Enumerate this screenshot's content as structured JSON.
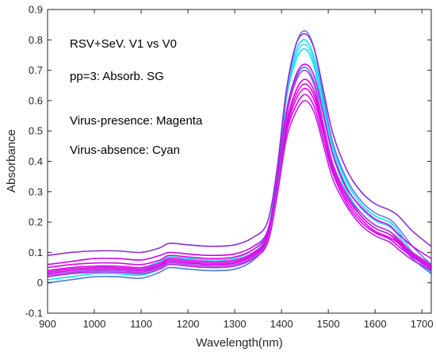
{
  "chart_data": {
    "type": "line",
    "title": "",
    "xlabel": "Wavelength(nm)",
    "ylabel": "Absorbance",
    "xlim": [
      900,
      1720
    ],
    "ylim": [
      -0.1,
      0.9
    ],
    "xticks": [
      900,
      1000,
      1100,
      1200,
      1300,
      1400,
      1500,
      1600,
      1700
    ],
    "yticks": [
      -0.1,
      0,
      0.1,
      0.2,
      0.3,
      0.4,
      0.5,
      0.6,
      0.7,
      0.8,
      0.9
    ],
    "ytick_labels": [
      "-0.1",
      "0",
      "0.1",
      "0.2",
      "0.3",
      "0.4",
      "0.5",
      "0.6",
      "0.7",
      "0.8",
      "0.9"
    ],
    "grid": false,
    "annotations": [
      "RSV+SeV. V1 vs V0",
      "pp=3: Absorb. SG",
      "Virus-presence: Magenta",
      "Virus-absence:  Cyan"
    ],
    "x": [
      900,
      950,
      1000,
      1050,
      1100,
      1140,
      1160,
      1200,
      1250,
      1300,
      1340,
      1370,
      1390,
      1410,
      1430,
      1450,
      1470,
      1490,
      1510,
      1540,
      1570,
      1600,
      1630,
      1650,
      1680,
      1720
    ],
    "series": [
      {
        "color": "#00E5EE",
        "values": [
          0.04,
          0.05,
          0.055,
          0.055,
          0.05,
          0.07,
          0.085,
          0.08,
          0.075,
          0.08,
          0.11,
          0.17,
          0.35,
          0.62,
          0.76,
          0.8,
          0.74,
          0.59,
          0.45,
          0.33,
          0.26,
          0.22,
          0.2,
          0.17,
          0.1,
          0.04
        ]
      },
      {
        "color": "#00E5EE",
        "values": [
          0.01,
          0.02,
          0.03,
          0.03,
          0.025,
          0.045,
          0.06,
          0.055,
          0.05,
          0.055,
          0.085,
          0.15,
          0.33,
          0.6,
          0.73,
          0.77,
          0.71,
          0.56,
          0.42,
          0.3,
          0.23,
          0.19,
          0.17,
          0.14,
          0.08,
          0.03
        ]
      },
      {
        "color": "#3DD6F5",
        "values": [
          0.03,
          0.04,
          0.045,
          0.045,
          0.04,
          0.06,
          0.075,
          0.07,
          0.065,
          0.07,
          0.1,
          0.16,
          0.34,
          0.61,
          0.745,
          0.785,
          0.725,
          0.575,
          0.435,
          0.315,
          0.245,
          0.205,
          0.185,
          0.155,
          0.09,
          0.035
        ]
      },
      {
        "color": "#6A7BE8",
        "values": [
          0.02,
          0.03,
          0.04,
          0.04,
          0.035,
          0.055,
          0.07,
          0.065,
          0.06,
          0.065,
          0.095,
          0.16,
          0.34,
          0.62,
          0.78,
          0.83,
          0.77,
          0.61,
          0.46,
          0.34,
          0.27,
          0.23,
          0.21,
          0.18,
          0.12,
          0.06
        ]
      },
      {
        "color": "#4B7BE0",
        "values": [
          0.0,
          0.01,
          0.02,
          0.02,
          0.015,
          0.035,
          0.05,
          0.045,
          0.04,
          0.045,
          0.075,
          0.14,
          0.31,
          0.55,
          0.67,
          0.71,
          0.66,
          0.52,
          0.39,
          0.29,
          0.22,
          0.18,
          0.16,
          0.13,
          0.08,
          0.03
        ]
      },
      {
        "color": "#8E2DD6",
        "values": [
          0.09,
          0.1,
          0.105,
          0.105,
          0.1,
          0.115,
          0.13,
          0.125,
          0.12,
          0.125,
          0.15,
          0.2,
          0.37,
          0.63,
          0.78,
          0.82,
          0.77,
          0.63,
          0.49,
          0.37,
          0.3,
          0.26,
          0.24,
          0.22,
          0.17,
          0.12
        ]
      },
      {
        "color": "#D000F0",
        "values": [
          0.06,
          0.07,
          0.08,
          0.08,
          0.075,
          0.09,
          0.1,
          0.095,
          0.09,
          0.095,
          0.12,
          0.17,
          0.33,
          0.56,
          0.68,
          0.72,
          0.68,
          0.55,
          0.42,
          0.31,
          0.25,
          0.21,
          0.19,
          0.16,
          0.12,
          0.08
        ]
      },
      {
        "color": "#E600E6",
        "values": [
          0.05,
          0.06,
          0.065,
          0.065,
          0.06,
          0.075,
          0.09,
          0.085,
          0.08,
          0.085,
          0.11,
          0.16,
          0.31,
          0.52,
          0.63,
          0.67,
          0.63,
          0.51,
          0.39,
          0.29,
          0.23,
          0.19,
          0.17,
          0.14,
          0.1,
          0.06
        ]
      },
      {
        "color": "#F000F0",
        "values": [
          0.04,
          0.05,
          0.055,
          0.055,
          0.05,
          0.065,
          0.08,
          0.075,
          0.07,
          0.075,
          0.1,
          0.15,
          0.3,
          0.5,
          0.6,
          0.64,
          0.6,
          0.49,
          0.37,
          0.27,
          0.21,
          0.17,
          0.15,
          0.13,
          0.09,
          0.05
        ]
      },
      {
        "color": "#E000F5",
        "values": [
          0.03,
          0.04,
          0.045,
          0.045,
          0.04,
          0.055,
          0.07,
          0.065,
          0.06,
          0.065,
          0.09,
          0.14,
          0.29,
          0.49,
          0.58,
          0.62,
          0.58,
          0.47,
          0.36,
          0.26,
          0.2,
          0.165,
          0.145,
          0.12,
          0.085,
          0.045
        ]
      },
      {
        "color": "#C020E8",
        "values": [
          0.02,
          0.03,
          0.035,
          0.035,
          0.03,
          0.045,
          0.06,
          0.055,
          0.05,
          0.055,
          0.08,
          0.13,
          0.28,
          0.47,
          0.56,
          0.6,
          0.56,
          0.45,
          0.34,
          0.25,
          0.19,
          0.155,
          0.135,
          0.11,
          0.075,
          0.04
        ]
      },
      {
        "color": "#D510D5",
        "values": [
          0.035,
          0.045,
          0.05,
          0.05,
          0.045,
          0.06,
          0.075,
          0.07,
          0.065,
          0.07,
          0.095,
          0.145,
          0.3,
          0.51,
          0.615,
          0.655,
          0.615,
          0.5,
          0.38,
          0.28,
          0.22,
          0.18,
          0.16,
          0.135,
          0.095,
          0.055
        ]
      },
      {
        "color": "#B040E0",
        "values": [
          0.025,
          0.035,
          0.04,
          0.04,
          0.035,
          0.05,
          0.065,
          0.06,
          0.055,
          0.06,
          0.085,
          0.14,
          0.3,
          0.54,
          0.66,
          0.7,
          0.65,
          0.52,
          0.39,
          0.29,
          0.23,
          0.19,
          0.17,
          0.145,
          0.1,
          0.06
        ]
      }
    ]
  }
}
